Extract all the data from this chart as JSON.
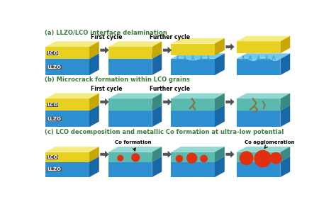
{
  "title_a": "(a) LLZO/LCO interface delamination",
  "title_b": "(b) Microcrack formation within LCO grains",
  "title_c": "(c) LCO decomposition and metallic Co formation at ultra-low potential",
  "label_first_cycle": "First cycle",
  "label_further_cycle": "Further cycle",
  "label_co_formation": "Co formation",
  "label_co_agglomeration": "Co agglomeration",
  "label_lco": "LCO",
  "label_llzo": "LLZO",
  "color_lco_front": "#E8D020",
  "color_lco_top": "#F5EC80",
  "color_lco_right": "#C8A800",
  "color_llzo_front": "#2E8FD0",
  "color_llzo_top": "#70C8F0",
  "color_llzo_right": "#1868A8",
  "color_bg": "#ffffff",
  "color_title": "#3D7A3D",
  "color_arrow_fill": "#555555",
  "color_co": "#E03010",
  "color_crack": "#8B7040",
  "color_label_bg": "#505050",
  "color_teal_front": "#5ABAB0",
  "color_teal_top": "#90D8D0",
  "color_teal_right": "#3A8A82",
  "color_delam_gap": "#90D0F0",
  "color_blue_arrow": "#40A8E0"
}
